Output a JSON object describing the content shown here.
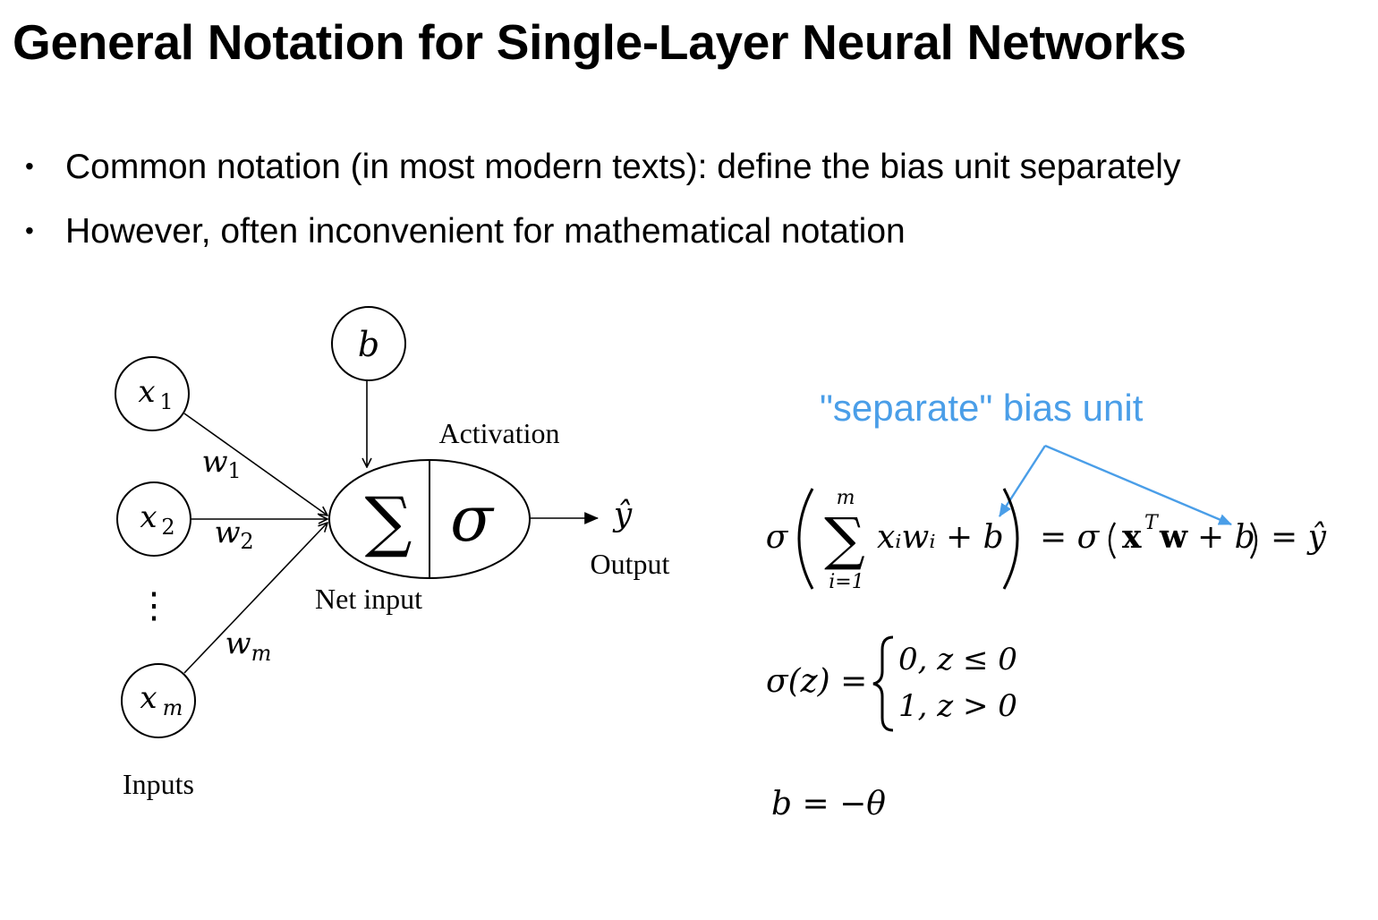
{
  "title": "General Notation for Single-Layer Neural Networks",
  "bullets": [
    {
      "marker": "•",
      "text": "Common notation (in most modern texts): define the bias unit separately"
    },
    {
      "marker": "•",
      "text": "However, often inconvenient for mathematical notation"
    }
  ],
  "diagram": {
    "bias_node": "b",
    "inputs": [
      {
        "node": "x",
        "sub": "1",
        "weight": "w",
        "weight_sub": "1"
      },
      {
        "node": "x",
        "sub": "2",
        "weight": "w",
        "weight_sub": "2"
      },
      {
        "node": "x",
        "sub": "m",
        "weight": "w",
        "weight_sub": "m"
      }
    ],
    "vdots": "⋮",
    "sum_symbol": "∑",
    "activation_symbol": "σ",
    "output_symbol": "ŷ",
    "labels": {
      "activation": "Activation",
      "net_input": "Net input",
      "output": "Output",
      "inputs": "Inputs"
    }
  },
  "callout": {
    "text": "\"separate\" bias unit",
    "color": "#4a9ee8"
  },
  "equations": {
    "eq1": {
      "sigma": "σ",
      "sum": "∑",
      "upper_limit": "m",
      "lower_limit": "i=1",
      "body": "xᵢwᵢ + b",
      "rhs_sigma": "= σ",
      "rhs_x": "x",
      "rhs_T": "T",
      "rhs_w": "w",
      "rhs_b": "+ b",
      "rhs_result": "= ŷ"
    },
    "eq2": {
      "lhs": "σ(z) =",
      "case1": "0,  z ≤ 0",
      "case2": "1,  z > 0"
    },
    "eq3": "b = −θ"
  }
}
